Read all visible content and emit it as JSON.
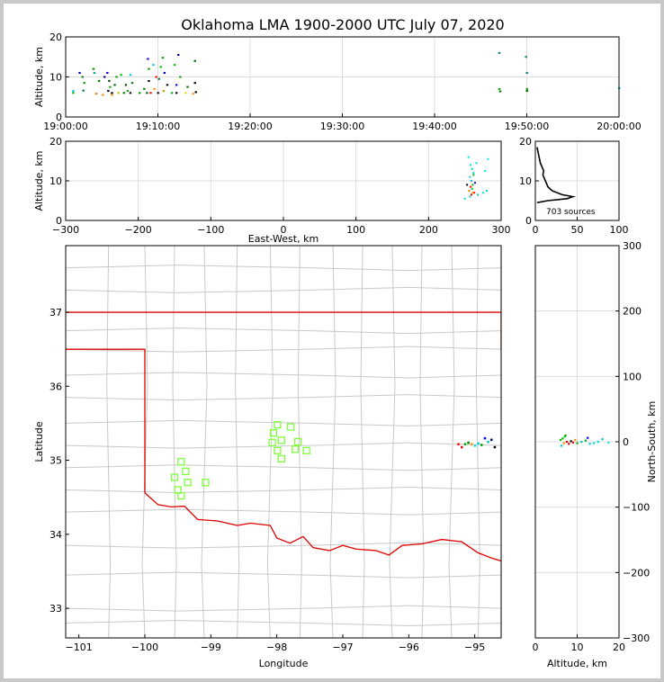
{
  "title": "Oklahoma LMA 1900-2000 UTC July 07, 2020",
  "colors": {
    "border": "#000000",
    "grid": "#dddddd",
    "state_line": "#e00000",
    "county_line": "#c8c8c8",
    "station": "#7fff3a"
  },
  "chart_data": [
    {
      "id": "time-altitude",
      "type": "scatter",
      "ylabel": "Altitude, km",
      "ylim": [
        0,
        20
      ],
      "yticks": [
        "0",
        "10",
        "20"
      ],
      "xticks": [
        "19:00:00",
        "19:10:00",
        "19:20:00",
        "19:30:00",
        "19:40:00",
        "19:50:00",
        "20:00:00"
      ],
      "xlim_minutes": [
        0,
        60
      ],
      "points": [
        {
          "t": 0.8,
          "z": 6.0,
          "c": "#00b400"
        },
        {
          "t": 0.8,
          "z": 6.5,
          "c": "#00d0d0"
        },
        {
          "t": 1.5,
          "z": 11.0,
          "c": "#0000d0"
        },
        {
          "t": 1.8,
          "z": 10.0,
          "c": "#008000"
        },
        {
          "t": 1.9,
          "z": 6.6,
          "c": "#007030"
        },
        {
          "t": 2.0,
          "z": 8.5,
          "c": "#00a000"
        },
        {
          "t": 3.0,
          "z": 12.0,
          "c": "#008000"
        },
        {
          "t": 3.1,
          "z": 11.0,
          "c": "#00a0a0"
        },
        {
          "t": 3.3,
          "z": 5.8,
          "c": "#e08000"
        },
        {
          "t": 3.6,
          "z": 9.0,
          "c": "#008000"
        },
        {
          "t": 4.0,
          "z": 5.5,
          "c": "#ff9000"
        },
        {
          "t": 4.2,
          "z": 10.0,
          "c": "#000080"
        },
        {
          "t": 4.5,
          "z": 11.0,
          "c": "#0000d0"
        },
        {
          "t": 4.6,
          "z": 6.5,
          "c": "#000000"
        },
        {
          "t": 4.7,
          "z": 9.0,
          "c": "#006000"
        },
        {
          "t": 4.8,
          "z": 7.5,
          "c": "#00b000"
        },
        {
          "t": 5.0,
          "z": 6.0,
          "c": "#000000"
        },
        {
          "t": 5.0,
          "z": 5.5,
          "c": "#ff9000"
        },
        {
          "t": 5.3,
          "z": 8.0,
          "c": "#006000"
        },
        {
          "t": 5.5,
          "z": 10.0,
          "c": "#00a000"
        },
        {
          "t": 5.7,
          "z": 6.0,
          "c": "#c0c000"
        },
        {
          "t": 6.0,
          "z": 10.5,
          "c": "#00c000"
        },
        {
          "t": 6.3,
          "z": 6.0,
          "c": "#008000"
        },
        {
          "t": 6.5,
          "z": 8.0,
          "c": "#004000"
        },
        {
          "t": 6.7,
          "z": 6.5,
          "c": "#00b000"
        },
        {
          "t": 7.0,
          "z": 10.5,
          "c": "#00c0c0"
        },
        {
          "t": 7.0,
          "z": 6.0,
          "c": "#000000"
        },
        {
          "t": 7.2,
          "z": 8.5,
          "c": "#008000"
        },
        {
          "t": 8.0,
          "z": 6.0,
          "c": "#00a000"
        },
        {
          "t": 8.5,
          "z": 7.0,
          "c": "#007000"
        },
        {
          "t": 8.8,
          "z": 6.0,
          "c": "#006000"
        },
        {
          "t": 8.9,
          "z": 14.5,
          "c": "#0000ff"
        },
        {
          "t": 9.0,
          "z": 9.0,
          "c": "#000000"
        },
        {
          "t": 9.0,
          "z": 12.0,
          "c": "#00a000"
        },
        {
          "t": 9.2,
          "z": 6.0,
          "c": "#ff0000"
        },
        {
          "t": 9.5,
          "z": 13.0,
          "c": "#00d0d0"
        },
        {
          "t": 9.6,
          "z": 7.0,
          "c": "#ff9000"
        },
        {
          "t": 9.8,
          "z": 10.0,
          "c": "#ff0000"
        },
        {
          "t": 10.0,
          "z": 6.0,
          "c": "#000000"
        },
        {
          "t": 10.1,
          "z": 9.5,
          "c": "#007030"
        },
        {
          "t": 10.3,
          "z": 12.5,
          "c": "#00c000"
        },
        {
          "t": 10.5,
          "z": 14.8,
          "c": "#00a000"
        },
        {
          "t": 10.6,
          "z": 6.5,
          "c": "#c0a000"
        },
        {
          "t": 10.7,
          "z": 11.0,
          "c": "#0000a0"
        },
        {
          "t": 11.0,
          "z": 8.0,
          "c": "#000000"
        },
        {
          "t": 11.5,
          "z": 6.0,
          "c": "#00b000"
        },
        {
          "t": 11.8,
          "z": 13.0,
          "c": "#00c000"
        },
        {
          "t": 12.0,
          "z": 8.0,
          "c": "#0000ff"
        },
        {
          "t": 12.0,
          "z": 6.0,
          "c": "#000000"
        },
        {
          "t": 12.2,
          "z": 15.5,
          "c": "#0000a0"
        },
        {
          "t": 12.4,
          "z": 10.0,
          "c": "#00a000"
        },
        {
          "t": 13.0,
          "z": 6.0,
          "c": "#e0e000"
        },
        {
          "t": 13.2,
          "z": 7.5,
          "c": "#007000"
        },
        {
          "t": 13.8,
          "z": 5.8,
          "c": "#ff9000"
        },
        {
          "t": 14.0,
          "z": 8.5,
          "c": "#000000"
        },
        {
          "t": 14.0,
          "z": 14.0,
          "c": "#006000"
        },
        {
          "t": 14.1,
          "z": 6.2,
          "c": "#000000"
        },
        {
          "t": 47.0,
          "z": 16.0,
          "c": "#008080"
        },
        {
          "t": 47.0,
          "z": 7.0,
          "c": "#00a000"
        },
        {
          "t": 47.1,
          "z": 6.4,
          "c": "#006000"
        },
        {
          "t": 49.9,
          "z": 15.0,
          "c": "#008080"
        },
        {
          "t": 50.0,
          "z": 11.0,
          "c": "#008080"
        },
        {
          "t": 50.0,
          "z": 7.0,
          "c": "#00a000"
        },
        {
          "t": 50.0,
          "z": 6.5,
          "c": "#006000"
        },
        {
          "t": 60.0,
          "z": 7.2,
          "c": "#00c0c0"
        }
      ]
    },
    {
      "id": "ew-altitude",
      "type": "scatter",
      "ylabel": "Altitude, km",
      "xlabel": "East-West, km",
      "xlim": [
        -300,
        300
      ],
      "ylim": [
        0,
        20
      ],
      "xticks": [
        "−300",
        "−200",
        "−100",
        "0",
        "100",
        "200",
        "300"
      ],
      "yticks": [
        "0",
        "10",
        "20"
      ],
      "points": [
        {
          "x": 255,
          "z": 16.0,
          "c": "#00e0e0"
        },
        {
          "x": 258,
          "z": 14.0,
          "c": "#00e0e0"
        },
        {
          "x": 260,
          "z": 13.0,
          "c": "#00d0d0"
        },
        {
          "x": 262,
          "z": 12.0,
          "c": "#00e0e0"
        },
        {
          "x": 257,
          "z": 11.0,
          "c": "#00d0d0"
        },
        {
          "x": 259,
          "z": 10.0,
          "c": "#00c0c0"
        },
        {
          "x": 261,
          "z": 9.0,
          "c": "#00a000"
        },
        {
          "x": 258,
          "z": 8.5,
          "c": "#ff0000"
        },
        {
          "x": 260,
          "z": 8.0,
          "c": "#00c000"
        },
        {
          "x": 256,
          "z": 7.5,
          "c": "#ff8000"
        },
        {
          "x": 263,
          "z": 7.0,
          "c": "#ff0000"
        },
        {
          "x": 259,
          "z": 6.5,
          "c": "#e00000"
        },
        {
          "x": 257,
          "z": 6.0,
          "c": "#00e0e0"
        },
        {
          "x": 250,
          "z": 5.5,
          "c": "#00e0e0"
        },
        {
          "x": 268,
          "z": 6.5,
          "c": "#00c0c0"
        },
        {
          "x": 275,
          "z": 7.0,
          "c": "#00e0e0"
        },
        {
          "x": 280,
          "z": 7.5,
          "c": "#00d0d0"
        },
        {
          "x": 264,
          "z": 9.5,
          "c": "#0000ff"
        },
        {
          "x": 262,
          "z": 11.5,
          "c": "#00c000"
        },
        {
          "x": 266,
          "z": 14.5,
          "c": "#00e0e0"
        },
        {
          "x": 282,
          "z": 15.5,
          "c": "#00e0e0"
        },
        {
          "x": 278,
          "z": 12.5,
          "c": "#00e0e0"
        },
        {
          "x": 253,
          "z": 9.0,
          "c": "#000000"
        },
        {
          "x": 261,
          "z": 7.0,
          "c": "#ff9000"
        }
      ]
    },
    {
      "id": "altitude-histogram",
      "type": "line",
      "xlim": [
        0,
        100
      ],
      "ylim": [
        0,
        20
      ],
      "xticks": [
        "0",
        "50",
        "100"
      ],
      "yticks": [
        "0",
        "10",
        "20"
      ],
      "annotation": "703 sources",
      "profile": [
        {
          "z": 18.5,
          "n": 2
        },
        {
          "z": 17.5,
          "n": 3
        },
        {
          "z": 16.5,
          "n": 4
        },
        {
          "z": 15.5,
          "n": 5
        },
        {
          "z": 14.5,
          "n": 6
        },
        {
          "z": 13.5,
          "n": 8
        },
        {
          "z": 12.5,
          "n": 10
        },
        {
          "z": 11.5,
          "n": 9
        },
        {
          "z": 10.5,
          "n": 11
        },
        {
          "z": 9.5,
          "n": 13
        },
        {
          "z": 8.5,
          "n": 15
        },
        {
          "z": 7.5,
          "n": 20
        },
        {
          "z": 6.5,
          "n": 32
        },
        {
          "z": 6.0,
          "n": 45
        },
        {
          "z": 5.5,
          "n": 38
        },
        {
          "z": 5.0,
          "n": 15
        },
        {
          "z": 4.5,
          "n": 2
        }
      ]
    },
    {
      "id": "plan-map",
      "type": "scatter",
      "xlabel": "Longitude",
      "ylabel": "Latitude",
      "xlim": [
        -101.2,
        -94.6
      ],
      "ylim": [
        32.6,
        37.9
      ],
      "xticks": [
        "−101",
        "−100",
        "−99",
        "−98",
        "−97",
        "−96",
        "−95"
      ],
      "yticks": [
        "33",
        "34",
        "35",
        "36",
        "37"
      ],
      "stations": [
        {
          "lon": -99.45,
          "lat": 34.98
        },
        {
          "lon": -99.38,
          "lat": 34.85
        },
        {
          "lon": -99.55,
          "lat": 34.77
        },
        {
          "lon": -99.35,
          "lat": 34.7
        },
        {
          "lon": -99.5,
          "lat": 34.6
        },
        {
          "lon": -99.45,
          "lat": 34.52
        },
        {
          "lon": -99.08,
          "lat": 34.7
        },
        {
          "lon": -97.99,
          "lat": 35.48
        },
        {
          "lon": -98.05,
          "lat": 35.37
        },
        {
          "lon": -98.07,
          "lat": 35.24
        },
        {
          "lon": -97.93,
          "lat": 35.27
        },
        {
          "lon": -97.79,
          "lat": 35.45
        },
        {
          "lon": -97.68,
          "lat": 35.25
        },
        {
          "lon": -97.99,
          "lat": 35.13
        },
        {
          "lon": -97.72,
          "lat": 35.15
        },
        {
          "lon": -97.93,
          "lat": 35.02
        },
        {
          "lon": -97.55,
          "lat": 35.13
        }
      ],
      "sources": [
        {
          "lon": -95.25,
          "lat": 35.22,
          "c": "#ff0000"
        },
        {
          "lon": -95.15,
          "lat": 35.22,
          "c": "#00b000"
        },
        {
          "lon": -95.05,
          "lat": 35.22,
          "c": "#ff9000"
        },
        {
          "lon": -94.95,
          "lat": 35.23,
          "c": "#00d0d0"
        },
        {
          "lon": -94.85,
          "lat": 35.3,
          "c": "#0000ff"
        },
        {
          "lon": -94.75,
          "lat": 35.28,
          "c": "#000080"
        },
        {
          "lon": -95.2,
          "lat": 35.18,
          "c": "#e00000"
        },
        {
          "lon": -95.0,
          "lat": 35.2,
          "c": "#00e0e0"
        },
        {
          "lon": -94.9,
          "lat": 35.21,
          "c": "#00a000"
        },
        {
          "lon": -94.7,
          "lat": 35.18,
          "c": "#000000"
        },
        {
          "lon": -95.1,
          "lat": 35.24,
          "c": "#008000"
        },
        {
          "lon": -94.8,
          "lat": 35.25,
          "c": "#00c0c0"
        }
      ]
    },
    {
      "id": "altitude-ns",
      "type": "scatter",
      "xlabel": "Altitude, km",
      "ylabel": "North-South, km",
      "xlim": [
        0,
        20
      ],
      "ylim": [
        -300,
        300
      ],
      "xticks": [
        "0",
        "10",
        "20"
      ],
      "yticks": [
        "−300",
        "−200",
        "−100",
        "0",
        "100",
        "200",
        "300"
      ],
      "points": [
        {
          "z": 6.0,
          "y": 3,
          "c": "#00c000"
        },
        {
          "z": 6.5,
          "y": 5,
          "c": "#00b000"
        },
        {
          "z": 7.0,
          "y": 8,
          "c": "#00d000"
        },
        {
          "z": 6.8,
          "y": -2,
          "c": "#ff9000"
        },
        {
          "z": 7.5,
          "y": 0,
          "c": "#ff0000"
        },
        {
          "z": 8.0,
          "y": -3,
          "c": "#e00000"
        },
        {
          "z": 8.5,
          "y": 1,
          "c": "#000000"
        },
        {
          "z": 9.0,
          "y": -1,
          "c": "#ff0000"
        },
        {
          "z": 10.0,
          "y": -2,
          "c": "#00a000"
        },
        {
          "z": 11.0,
          "y": 0,
          "c": "#00c0c0"
        },
        {
          "z": 12.0,
          "y": 2,
          "c": "#00b000"
        },
        {
          "z": 13.0,
          "y": -3,
          "c": "#00d0d0"
        },
        {
          "z": 14.0,
          "y": -2,
          "c": "#00e0e0"
        },
        {
          "z": 15.0,
          "y": 0,
          "c": "#00e0e0"
        },
        {
          "z": 16.0,
          "y": 4,
          "c": "#00c0c0"
        },
        {
          "z": 17.5,
          "y": -1,
          "c": "#00e0e0"
        },
        {
          "z": 6.2,
          "y": -6,
          "c": "#00d0d0"
        },
        {
          "z": 7.2,
          "y": 10,
          "c": "#00b000"
        },
        {
          "z": 9.5,
          "y": 3,
          "c": "#ff9000"
        },
        {
          "z": 12.5,
          "y": 6,
          "c": "#0000ff"
        }
      ]
    }
  ]
}
